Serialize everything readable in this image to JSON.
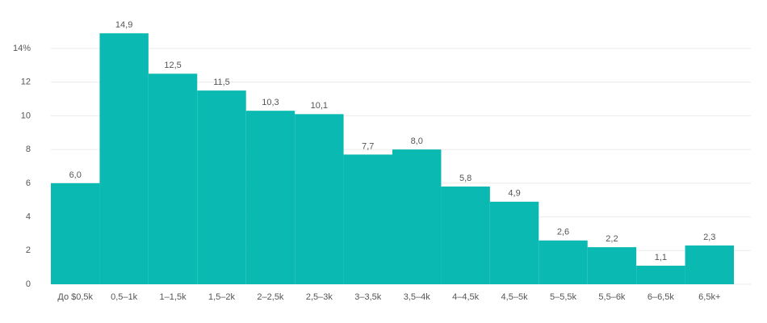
{
  "chart_data": {
    "type": "bar",
    "categories": [
      "До $0,5k",
      "0,5–1k",
      "1–1,5k",
      "1,5–2k",
      "2–2,5k",
      "2,5–3k",
      "3–3,5k",
      "3,5–4k",
      "4–4,5k",
      "4,5–5k",
      "5–5,5k",
      "5,5–6k",
      "6–6,5k",
      "6,5k+"
    ],
    "values": [
      6.0,
      14.9,
      12.5,
      11.5,
      10.3,
      10.1,
      7.7,
      8.0,
      5.8,
      4.9,
      2.6,
      2.2,
      1.1,
      2.3
    ],
    "value_labels": [
      "6,0",
      "14,9",
      "12,5",
      "11,5",
      "10,3",
      "10,1",
      "7,7",
      "8,0",
      "5,8",
      "4,9",
      "2,6",
      "2,2",
      "1,1",
      "2,3"
    ],
    "color": "#09b9b2",
    "ylim": [
      0,
      14
    ],
    "yticks": [
      0,
      2,
      4,
      6,
      8,
      10,
      12,
      {
        "value": 14,
        "label": "14%"
      }
    ],
    "grid": true
  }
}
